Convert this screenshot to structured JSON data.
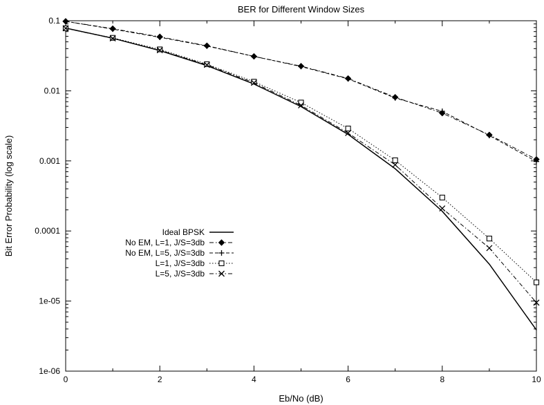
{
  "chart_data": {
    "type": "line",
    "title": "BER for Different Window Sizes",
    "xlabel": "Eb/No (dB)",
    "ylabel": "Bit Error Probability (log scale)",
    "xlim": [
      0,
      10
    ],
    "ylim": [
      1e-06,
      0.1
    ],
    "yscale": "log",
    "x_ticks": [
      0,
      2,
      4,
      6,
      8,
      10
    ],
    "x_tick_labels": [
      "0",
      "2",
      "4",
      "6",
      "8",
      "10"
    ],
    "y_ticks": [
      0.1,
      0.01,
      0.001,
      0.0001,
      1e-05,
      1e-06
    ],
    "y_tick_labels": [
      "0.1",
      "0.01",
      "0.001",
      "0.0001",
      "1e-05",
      "1e-06"
    ],
    "grid": false,
    "legend_position": "left",
    "series": [
      {
        "name": "Ideal BPSK",
        "marker": "none",
        "dash": "solid",
        "x": [
          0,
          1,
          2,
          3,
          4,
          5,
          6,
          7,
          8,
          9,
          10
        ],
        "values": [
          0.0786,
          0.0563,
          0.0375,
          0.0229,
          0.0125,
          0.00595,
          0.00239,
          0.000773,
          0.000191,
          3.36e-05,
          3.87e-06
        ]
      },
      {
        "name": "No EM, L=1, J/S=3db",
        "marker": "diamond",
        "dash": "dashdot",
        "x": [
          0,
          1,
          2,
          3,
          4,
          5,
          6,
          7,
          8,
          9,
          10
        ],
        "values": [
          0.098,
          0.077,
          0.059,
          0.044,
          0.031,
          0.0225,
          0.015,
          0.0081,
          0.0048,
          0.00235,
          0.00105
        ]
      },
      {
        "name": "No EM, L=5, J/S=3db",
        "marker": "plus",
        "dash": "dashed",
        "x": [
          0,
          1,
          2,
          3,
          4,
          5,
          6,
          7,
          8,
          9,
          10
        ],
        "values": [
          0.098,
          0.076,
          0.058,
          0.0435,
          0.031,
          0.0222,
          0.0148,
          0.0079,
          0.0051,
          0.0023,
          0.00098
        ]
      },
      {
        "name": "L=1, J/S=3db",
        "marker": "square",
        "dash": "dotted",
        "x": [
          0,
          1,
          2,
          3,
          4,
          5,
          6,
          7,
          8,
          9,
          10
        ],
        "values": [
          0.078,
          0.057,
          0.039,
          0.024,
          0.0135,
          0.0068,
          0.0029,
          0.00102,
          0.0003,
          7.8e-05,
          1.85e-05
        ]
      },
      {
        "name": "L=5, J/S=3db",
        "marker": "cross",
        "dash": "dashdot",
        "x": [
          0,
          1,
          2,
          3,
          4,
          5,
          6,
          7,
          8,
          9,
          10
        ],
        "values": [
          0.078,
          0.056,
          0.038,
          0.0235,
          0.013,
          0.0062,
          0.0025,
          0.00088,
          0.00021,
          5.7e-05,
          9.5e-06
        ]
      }
    ]
  }
}
